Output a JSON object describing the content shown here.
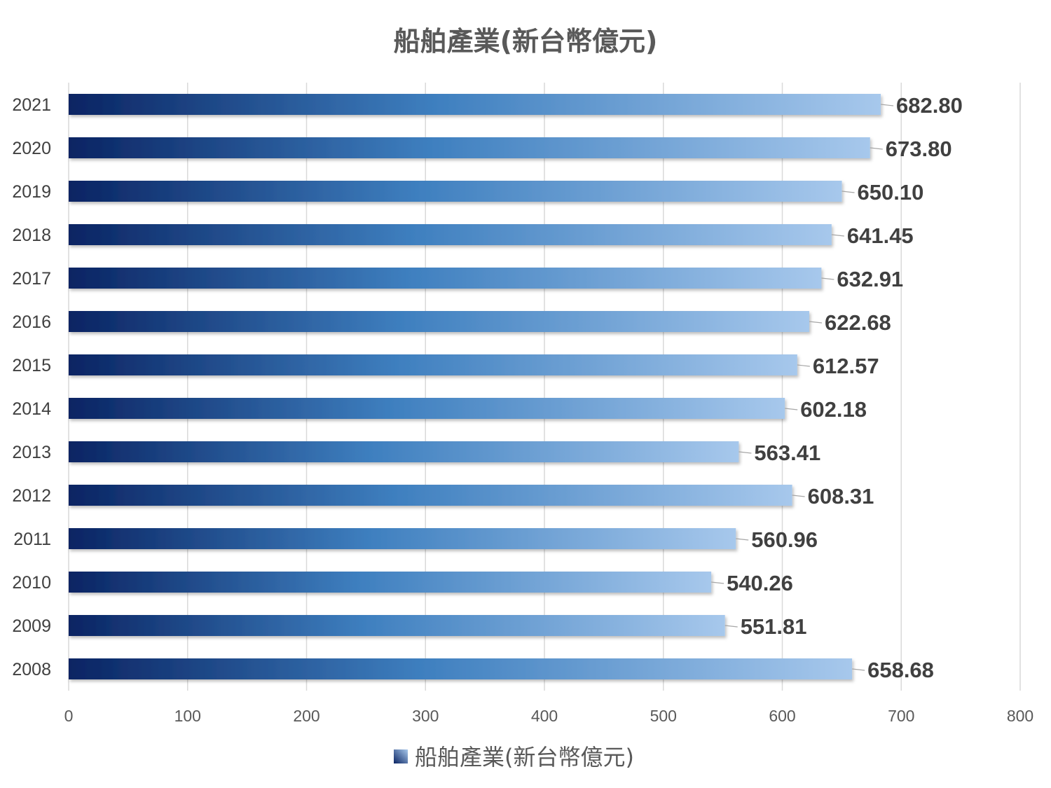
{
  "chart_data": {
    "type": "bar",
    "orientation": "horizontal",
    "title": "船舶產業(新台幣億元)",
    "categories": [
      "2021",
      "2020",
      "2019",
      "2018",
      "2017",
      "2016",
      "2015",
      "2014",
      "2013",
      "2012",
      "2011",
      "2010",
      "2009",
      "2008"
    ],
    "series": [
      {
        "name": "船舶產業(新台幣億元)",
        "values": [
          682.8,
          673.8,
          650.1,
          641.45,
          632.91,
          622.68,
          612.57,
          602.18,
          563.41,
          608.31,
          560.96,
          540.26,
          551.81,
          658.68
        ],
        "labels": [
          "682.80",
          "673.80",
          "650.10",
          "641.45",
          "632.91",
          "622.68",
          "612.57",
          "602.18",
          "563.41",
          "608.31",
          "560.96",
          "540.26",
          "551.81",
          "658.68"
        ]
      }
    ],
    "xlim": [
      0,
      800
    ],
    "xticks": [
      "0",
      "100",
      "200",
      "300",
      "400",
      "500",
      "600",
      "700",
      "800"
    ],
    "grid": true,
    "legend_position": "bottom",
    "colors": {
      "bar_start": "#0a2463",
      "bar_mid": "#3e7fbf",
      "bar_end": "#a7c8ec",
      "grid": "#d9d9d9"
    }
  }
}
